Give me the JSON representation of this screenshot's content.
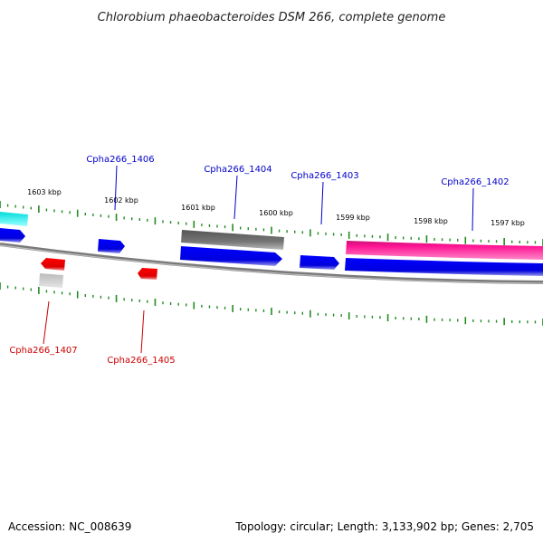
{
  "title": "Chlorobium phaeobacteroides DSM 266, complete genome",
  "footer": {
    "accession": "Accession: NC_008639",
    "summary": "Topology: circular; Length: 3,133,902 bp; Genes: 2,705"
  },
  "scale_labels": [
    "1603 kbp",
    "1602 kbp",
    "1601 kbp",
    "1600 kbp",
    "1599 kbp",
    "1598 kbp",
    "1597 kbp"
  ],
  "gene_labels": {
    "g1406": "Cpha266_1406",
    "g1404": "Cpha266_1404",
    "g1403": "Cpha266_1403",
    "g1402": "Cpha266_1402",
    "g1407": "Cpha266_1407",
    "g1405": "Cpha266_1405"
  },
  "colors": {
    "forward_gene": "#0000ee",
    "reverse_gene": "#ee0000",
    "label_forward": "#0000cc",
    "label_reverse": "#cc0000",
    "highlight_magenta": "#ff1493",
    "cyan_gene": "#00e5e5",
    "gray_gene": "#666666",
    "tick": "#228b22",
    "backbone": "#888888"
  }
}
